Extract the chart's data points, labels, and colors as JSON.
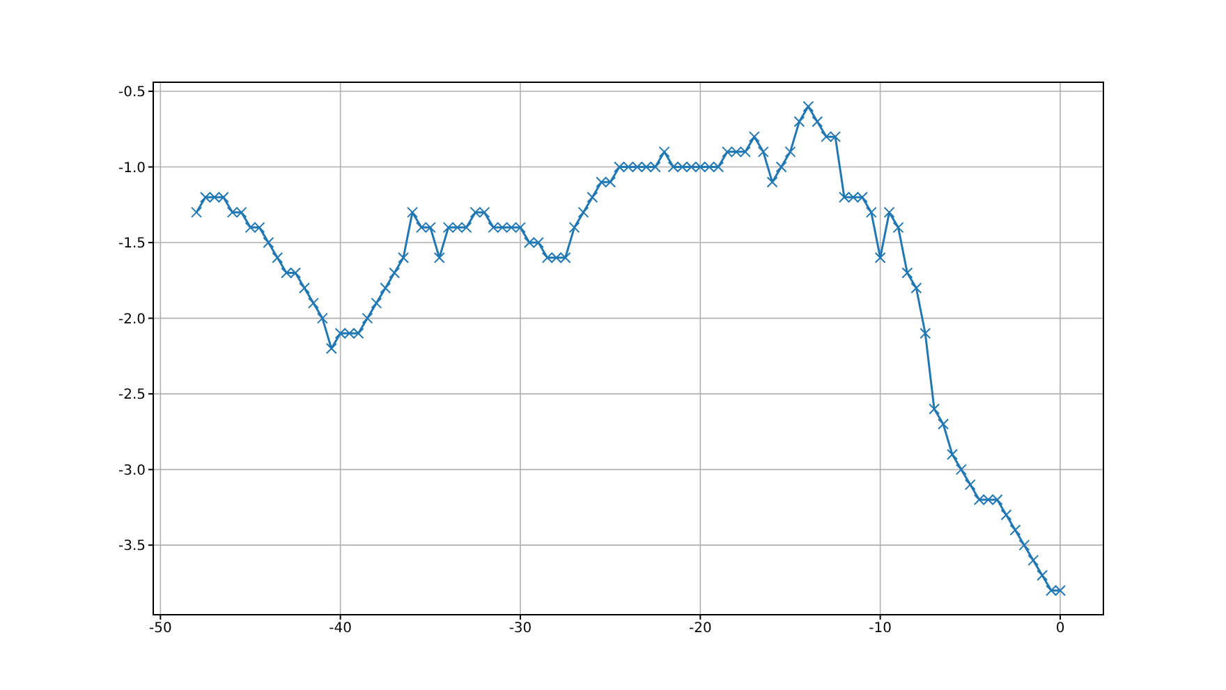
{
  "chart_data": {
    "type": "line",
    "marker": "cross",
    "grid": true,
    "color": "#1f77b4",
    "x": [
      -48,
      -47.5,
      -47,
      -46.5,
      -46,
      -45.5,
      -45,
      -44.5,
      -44,
      -43.5,
      -43,
      -42.5,
      -42,
      -41.5,
      -41,
      -40.5,
      -40,
      -39.5,
      -39,
      -38.5,
      -38,
      -37.5,
      -37,
      -36.5,
      -36,
      -35.5,
      -35,
      -34.5,
      -34,
      -33.5,
      -33,
      -32.5,
      -32,
      -31.5,
      -31,
      -30.5,
      -30,
      -29.5,
      -29,
      -28.5,
      -28,
      -27.5,
      -27,
      -26.5,
      -26,
      -25.5,
      -25,
      -24.5,
      -24,
      -23.5,
      -23,
      -22.5,
      -22,
      -21.5,
      -21,
      -20.5,
      -20,
      -19.5,
      -19,
      -18.5,
      -18,
      -17.5,
      -17,
      -16.5,
      -16,
      -15.5,
      -15,
      -14.5,
      -14,
      -13.5,
      -13,
      -12.5,
      -12,
      -11.5,
      -11,
      -10.5,
      -10,
      -9.5,
      -9,
      -8.5,
      -8,
      -7.5,
      -7,
      -6.5,
      -6,
      -5.5,
      -5,
      -4.5,
      -4,
      -3.5,
      -3,
      -2.5,
      -2,
      -1.5,
      -1,
      -0.5,
      0
    ],
    "values": [
      -1.3,
      -1.2,
      -1.2,
      -1.2,
      -1.3,
      -1.3,
      -1.4,
      -1.4,
      -1.5,
      -1.6,
      -1.7,
      -1.7,
      -1.8,
      -1.9,
      -2.0,
      -2.2,
      -2.1,
      -2.1,
      -2.1,
      -2.0,
      -1.9,
      -1.8,
      -1.7,
      -1.6,
      -1.3,
      -1.4,
      -1.4,
      -1.6,
      -1.4,
      -1.4,
      -1.4,
      -1.3,
      -1.3,
      -1.4,
      -1.4,
      -1.4,
      -1.4,
      -1.5,
      -1.5,
      -1.6,
      -1.6,
      -1.6,
      -1.4,
      -1.3,
      -1.2,
      -1.1,
      -1.1,
      -1.0,
      -1.0,
      -1.0,
      -1.0,
      -1.0,
      -0.9,
      -1.0,
      -1.0,
      -1.0,
      -1.0,
      -1.0,
      -1.0,
      -0.9,
      -0.9,
      -0.9,
      -0.8,
      -0.9,
      -1.1,
      -1.0,
      -0.9,
      -0.7,
      -0.6,
      -0.7,
      -0.8,
      -0.8,
      -1.2,
      -1.2,
      -1.2,
      -1.3,
      -1.6,
      -1.3,
      -1.4,
      -1.7,
      -1.8,
      -2.1,
      -2.6,
      -2.7,
      -2.9,
      -3.0,
      -3.1,
      -3.2,
      -3.2,
      -3.2,
      -3.3,
      -3.4,
      -3.5,
      -3.6,
      -3.7,
      -3.8,
      -3.8
    ],
    "xlim": [
      -50.4,
      2.4
    ],
    "xticks": [
      -50,
      -40,
      -30,
      -20,
      -10,
      0
    ],
    "ylim": [
      -3.96,
      -0.44
    ],
    "yticks": [
      {
        "value": -3.5,
        "label": "-3.5"
      },
      {
        "value": -3.0,
        "label": "-3.0"
      },
      {
        "value": -2.5,
        "label": "-2.5"
      },
      {
        "value": -2.0,
        "label": "-2.0"
      },
      {
        "value": -1.5,
        "label": "-1.5"
      },
      {
        "value": -1.0,
        "label": "-1.0"
      },
      {
        "value": -0.5,
        "label": "-0.5"
      }
    ]
  }
}
